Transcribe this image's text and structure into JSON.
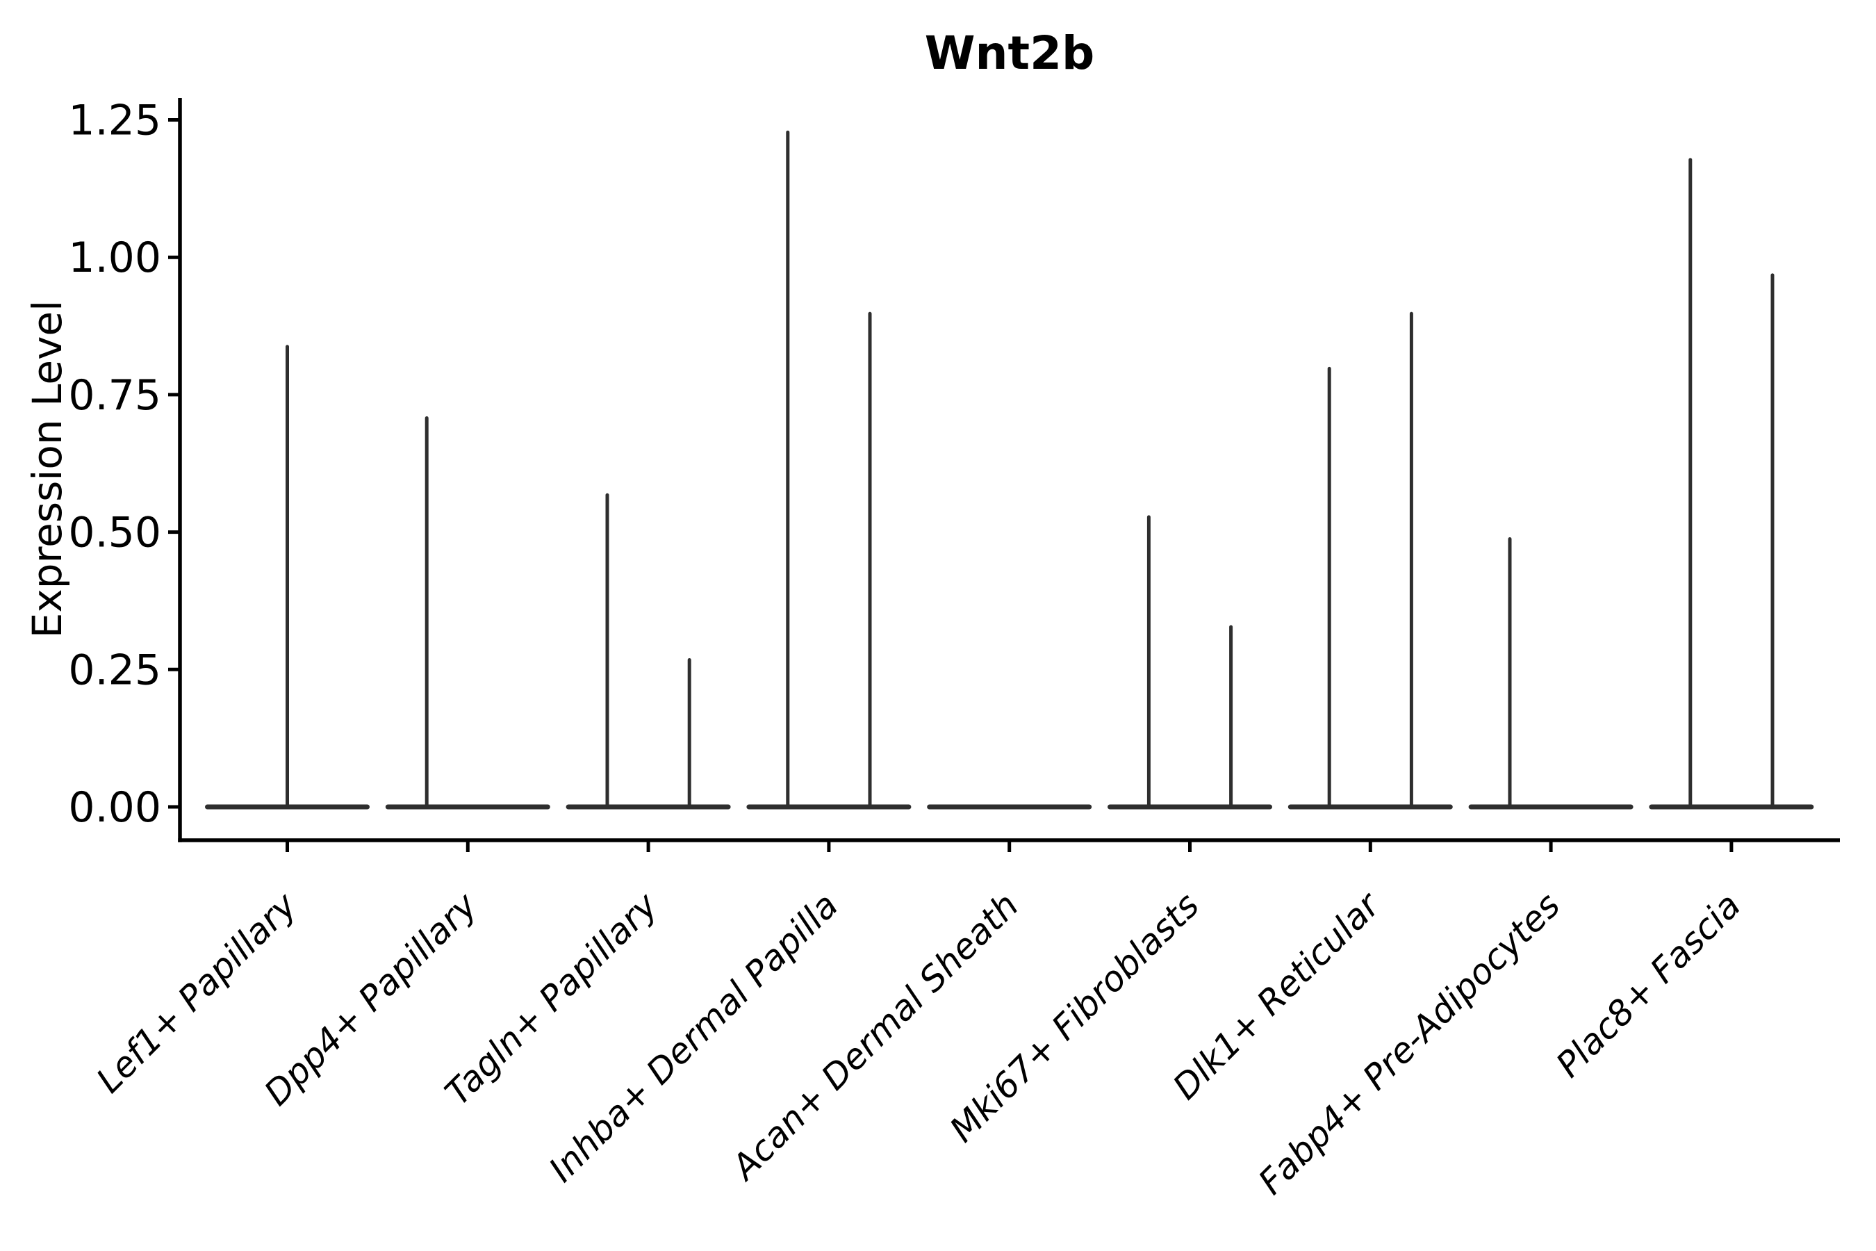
{
  "figure": {
    "title": "Wnt2b",
    "ylabel": "Expression Level",
    "xlabel": ""
  },
  "chart_data": {
    "type": "violin",
    "title": "Wnt2b",
    "ylabel": "Expression Level",
    "xlabel": "",
    "grid": false,
    "legend_position": "none",
    "ylim": [
      -0.06,
      1.29
    ],
    "ytick_labels": [
      "0.00",
      "0.25",
      "0.50",
      "0.75",
      "1.00",
      "1.25"
    ],
    "ytick_values": [
      0.0,
      0.25,
      0.5,
      0.75,
      1.0,
      1.25
    ],
    "categories": [
      "Lef1+ Papillary",
      "Dpp4+ Papillary",
      "Tagln+ Papillary",
      "Inhba+ Dermal Papilla",
      "Acan+ Dermal Sheath",
      "Mki67+ Fibroblasts",
      "Dlk1+ Reticular",
      "Fabp4+ Pre-Adipocytes",
      "Plac8+ Fascia"
    ],
    "violins": [
      {
        "category": "Lef1+ Papillary",
        "spikes": [
          {
            "position": "center",
            "peak": 0.84
          }
        ]
      },
      {
        "category": "Dpp4+ Papillary",
        "spikes": [
          {
            "position": "left",
            "peak": 0.71
          }
        ]
      },
      {
        "category": "Tagln+ Papillary",
        "spikes": [
          {
            "position": "left",
            "peak": 0.57
          },
          {
            "position": "right",
            "peak": 0.27
          }
        ]
      },
      {
        "category": "Inhba+ Dermal Papilla",
        "spikes": [
          {
            "position": "left",
            "peak": 1.23
          },
          {
            "position": "right",
            "peak": 0.9
          }
        ]
      },
      {
        "category": "Acan+ Dermal Sheath",
        "spikes": []
      },
      {
        "category": "Mki67+ Fibroblasts",
        "spikes": [
          {
            "position": "left",
            "peak": 0.53
          },
          {
            "position": "right",
            "peak": 0.33
          }
        ]
      },
      {
        "category": "Dlk1+ Reticular",
        "spikes": [
          {
            "position": "left",
            "peak": 0.8
          },
          {
            "position": "right",
            "peak": 0.9
          }
        ]
      },
      {
        "category": "Fabp4+ Pre-Adipocytes",
        "spikes": [
          {
            "position": "left",
            "peak": 0.49
          }
        ]
      },
      {
        "category": "Plac8+ Fascia",
        "spikes": [
          {
            "position": "left",
            "peak": 1.18
          },
          {
            "position": "right",
            "peak": 0.97
          }
        ]
      }
    ],
    "baseline_value": 0.0,
    "colors": {
      "violin_line": "#2e2e2e",
      "axis": "#000000",
      "text": "#000000",
      "background": "#ffffff"
    }
  }
}
